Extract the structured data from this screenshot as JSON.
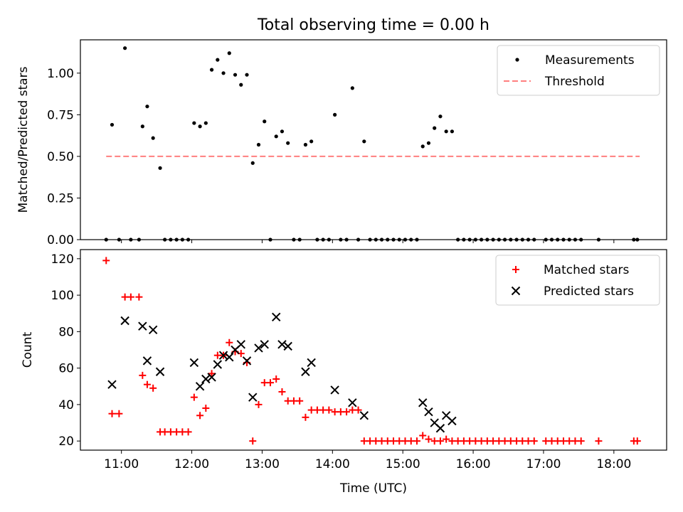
{
  "title": "Total observing time = 0.00 h",
  "chart_data": [
    {
      "type": "scatter",
      "title": "Total observing time = 0.00 h",
      "xlabel": "",
      "ylabel": "Matched/Predicted stars",
      "ylim": [
        0,
        1.2
      ],
      "yticks": [
        "0.00",
        "0.25",
        "0.50",
        "0.75",
        "1.00"
      ],
      "xlim": [
        "10:25",
        "18:45"
      ],
      "legend": {
        "position": "upper right",
        "entries": [
          "Measurements",
          "Threshold"
        ]
      },
      "series": [
        {
          "name": "Measurements",
          "color": "#000000",
          "marker": "dot",
          "points": [
            [
              "10:47",
              0.0
            ],
            [
              "10:52",
              0.69
            ],
            [
              "10:58",
              0.0
            ],
            [
              "11:03",
              1.15
            ],
            [
              "11:08",
              0.0
            ],
            [
              "11:15",
              0.0
            ],
            [
              "11:18",
              0.68
            ],
            [
              "11:22",
              0.8
            ],
            [
              "11:27",
              0.61
            ],
            [
              "11:33",
              0.43
            ],
            [
              "11:37",
              0.0
            ],
            [
              "11:42",
              0.0
            ],
            [
              "11:47",
              0.0
            ],
            [
              "11:52",
              0.0
            ],
            [
              "11:57",
              0.0
            ],
            [
              "12:02",
              0.7
            ],
            [
              "12:07",
              0.68
            ],
            [
              "12:12",
              0.7
            ],
            [
              "12:17",
              1.02
            ],
            [
              "12:22",
              1.08
            ],
            [
              "12:27",
              1.0
            ],
            [
              "12:32",
              1.12
            ],
            [
              "12:37",
              0.99
            ],
            [
              "12:42",
              0.93
            ],
            [
              "12:47",
              0.99
            ],
            [
              "12:52",
              0.46
            ],
            [
              "12:57",
              0.57
            ],
            [
              "13:02",
              0.71
            ],
            [
              "13:07",
              0.0
            ],
            [
              "13:12",
              0.62
            ],
            [
              "13:17",
              0.65
            ],
            [
              "13:22",
              0.58
            ],
            [
              "13:27",
              0.0
            ],
            [
              "13:32",
              0.0
            ],
            [
              "13:37",
              0.57
            ],
            [
              "13:42",
              0.59
            ],
            [
              "13:47",
              0.0
            ],
            [
              "13:52",
              0.0
            ],
            [
              "13:57",
              0.0
            ],
            [
              "14:02",
              0.75
            ],
            [
              "14:07",
              0.0
            ],
            [
              "14:12",
              0.0
            ],
            [
              "14:17",
              0.91
            ],
            [
              "14:22",
              0.0
            ],
            [
              "14:27",
              0.59
            ],
            [
              "14:32",
              0.0
            ],
            [
              "14:37",
              0.0
            ],
            [
              "14:42",
              0.0
            ],
            [
              "14:47",
              0.0
            ],
            [
              "14:52",
              0.0
            ],
            [
              "14:57",
              0.0
            ],
            [
              "15:02",
              0.0
            ],
            [
              "15:07",
              0.0
            ],
            [
              "15:12",
              0.0
            ],
            [
              "15:17",
              0.56
            ],
            [
              "15:22",
              0.58
            ],
            [
              "15:27",
              0.67
            ],
            [
              "15:32",
              0.74
            ],
            [
              "15:37",
              0.65
            ],
            [
              "15:42",
              0.65
            ],
            [
              "15:47",
              0.0
            ],
            [
              "15:52",
              0.0
            ],
            [
              "15:57",
              0.0
            ],
            [
              "16:02",
              0.0
            ],
            [
              "16:07",
              0.0
            ],
            [
              "16:12",
              0.0
            ],
            [
              "16:17",
              0.0
            ],
            [
              "16:22",
              0.0
            ],
            [
              "16:27",
              0.0
            ],
            [
              "16:32",
              0.0
            ],
            [
              "16:37",
              0.0
            ],
            [
              "16:42",
              0.0
            ],
            [
              "16:47",
              0.0
            ],
            [
              "16:52",
              0.0
            ],
            [
              "17:02",
              0.0
            ],
            [
              "17:07",
              0.0
            ],
            [
              "17:12",
              0.0
            ],
            [
              "17:17",
              0.0
            ],
            [
              "17:22",
              0.0
            ],
            [
              "17:27",
              0.0
            ],
            [
              "17:32",
              0.0
            ],
            [
              "17:47",
              0.0
            ],
            [
              "18:17",
              0.0
            ],
            [
              "18:20",
              0.0
            ]
          ]
        },
        {
          "name": "Threshold",
          "color": "#ff7f7f",
          "style": "dashed",
          "points": [
            [
              "10:47",
              0.5
            ],
            [
              "18:22",
              0.5
            ]
          ]
        }
      ]
    },
    {
      "type": "scatter",
      "xlabel": "Time (UTC)",
      "ylabel": "Count",
      "ylim": [
        15,
        125
      ],
      "yticks": [
        20,
        40,
        60,
        80,
        100,
        120
      ],
      "xlim": [
        "10:25",
        "18:45"
      ],
      "xticks": [
        "11:00",
        "12:00",
        "13:00",
        "14:00",
        "15:00",
        "16:00",
        "17:00",
        "18:00"
      ],
      "legend": {
        "position": "upper right",
        "entries": [
          "Matched stars",
          "Predicted stars"
        ]
      },
      "series": [
        {
          "name": "Matched stars",
          "color": "#ff0000",
          "marker": "plus",
          "points": [
            [
              "10:47",
              119
            ],
            [
              "10:52",
              35
            ],
            [
              "10:58",
              35
            ],
            [
              "11:03",
              99
            ],
            [
              "11:08",
              99
            ],
            [
              "11:15",
              99
            ],
            [
              "11:18",
              56
            ],
            [
              "11:22",
              51
            ],
            [
              "11:27",
              49
            ],
            [
              "11:33",
              25
            ],
            [
              "11:37",
              25
            ],
            [
              "11:42",
              25
            ],
            [
              "11:47",
              25
            ],
            [
              "11:52",
              25
            ],
            [
              "11:57",
              25
            ],
            [
              "12:02",
              44
            ],
            [
              "12:07",
              34
            ],
            [
              "12:12",
              38
            ],
            [
              "12:17",
              57
            ],
            [
              "12:22",
              67
            ],
            [
              "12:27",
              67
            ],
            [
              "12:32",
              74
            ],
            [
              "12:37",
              69
            ],
            [
              "12:42",
              68
            ],
            [
              "12:47",
              63
            ],
            [
              "12:52",
              20
            ],
            [
              "12:57",
              40
            ],
            [
              "13:02",
              52
            ],
            [
              "13:07",
              52
            ],
            [
              "13:12",
              54
            ],
            [
              "13:17",
              47
            ],
            [
              "13:22",
              42
            ],
            [
              "13:27",
              42
            ],
            [
              "13:32",
              42
            ],
            [
              "13:37",
              33
            ],
            [
              "13:42",
              37
            ],
            [
              "13:47",
              37
            ],
            [
              "13:52",
              37
            ],
            [
              "13:57",
              37
            ],
            [
              "14:02",
              36
            ],
            [
              "14:07",
              36
            ],
            [
              "14:12",
              36
            ],
            [
              "14:17",
              37
            ],
            [
              "14:22",
              37
            ],
            [
              "14:27",
              20
            ],
            [
              "14:32",
              20
            ],
            [
              "14:37",
              20
            ],
            [
              "14:42",
              20
            ],
            [
              "14:47",
              20
            ],
            [
              "14:52",
              20
            ],
            [
              "14:57",
              20
            ],
            [
              "15:02",
              20
            ],
            [
              "15:07",
              20
            ],
            [
              "15:12",
              20
            ],
            [
              "15:17",
              23
            ],
            [
              "15:22",
              21
            ],
            [
              "15:27",
              20
            ],
            [
              "15:32",
              20
            ],
            [
              "15:37",
              21
            ],
            [
              "15:42",
              20
            ],
            [
              "15:47",
              20
            ],
            [
              "15:52",
              20
            ],
            [
              "15:57",
              20
            ],
            [
              "16:02",
              20
            ],
            [
              "16:07",
              20
            ],
            [
              "16:12",
              20
            ],
            [
              "16:17",
              20
            ],
            [
              "16:22",
              20
            ],
            [
              "16:27",
              20
            ],
            [
              "16:32",
              20
            ],
            [
              "16:37",
              20
            ],
            [
              "16:42",
              20
            ],
            [
              "16:47",
              20
            ],
            [
              "16:52",
              20
            ],
            [
              "17:02",
              20
            ],
            [
              "17:07",
              20
            ],
            [
              "17:12",
              20
            ],
            [
              "17:17",
              20
            ],
            [
              "17:22",
              20
            ],
            [
              "17:27",
              20
            ],
            [
              "17:32",
              20
            ],
            [
              "17:47",
              20
            ],
            [
              "18:17",
              20
            ],
            [
              "18:20",
              20
            ]
          ]
        },
        {
          "name": "Predicted stars",
          "color": "#000000",
          "marker": "x",
          "points": [
            [
              "10:52",
              51
            ],
            [
              "11:03",
              86
            ],
            [
              "11:18",
              83
            ],
            [
              "11:22",
              64
            ],
            [
              "11:27",
              81
            ],
            [
              "11:33",
              58
            ],
            [
              "12:02",
              63
            ],
            [
              "12:07",
              50
            ],
            [
              "12:12",
              54
            ],
            [
              "12:17",
              55
            ],
            [
              "12:22",
              62
            ],
            [
              "12:27",
              67
            ],
            [
              "12:32",
              66
            ],
            [
              "12:37",
              70
            ],
            [
              "12:42",
              73
            ],
            [
              "12:47",
              64
            ],
            [
              "12:52",
              44
            ],
            [
              "12:57",
              71
            ],
            [
              "13:02",
              73
            ],
            [
              "13:12",
              88
            ],
            [
              "13:17",
              73
            ],
            [
              "13:22",
              72
            ],
            [
              "13:37",
              58
            ],
            [
              "13:42",
              63
            ],
            [
              "14:02",
              48
            ],
            [
              "14:17",
              41
            ],
            [
              "14:27",
              34
            ],
            [
              "15:17",
              41
            ],
            [
              "15:22",
              36
            ],
            [
              "15:27",
              30
            ],
            [
              "15:32",
              27
            ],
            [
              "15:37",
              34
            ],
            [
              "15:42",
              31
            ]
          ]
        }
      ]
    }
  ]
}
